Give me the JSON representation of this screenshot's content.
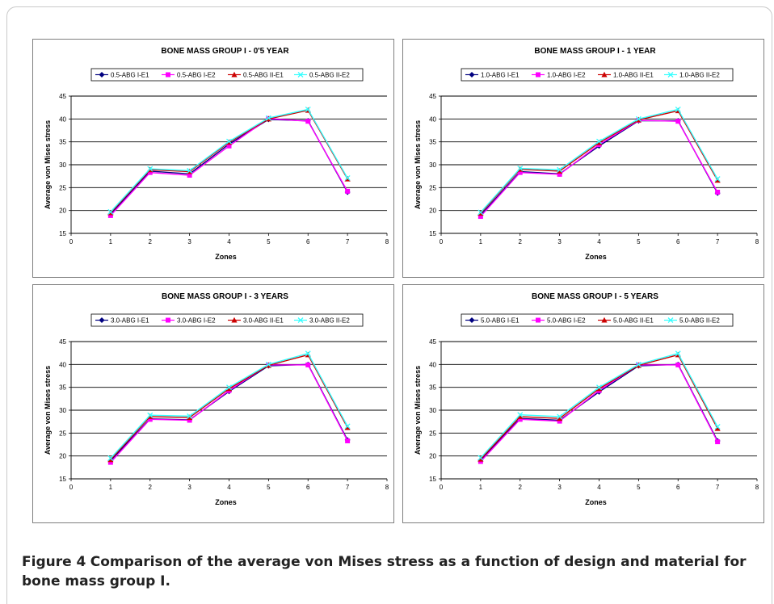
{
  "figure": {
    "caption_label": "Figure 4",
    "caption_text": "Comparison of the average von Mises stress as a function of design and material for bone mass group I."
  },
  "colors": {
    "series": [
      "#000080",
      "#ff00ff",
      "#cc0000",
      "#33ffff"
    ],
    "gridline": "#000000",
    "frame": "#c9c9c9"
  },
  "chart_data": [
    {
      "type": "line",
      "title": "BONE MASS GROUP I - 0'5 YEAR",
      "xlabel": "Zones",
      "ylabel": "Average von Mises stress",
      "xlim": [
        0,
        8
      ],
      "ylim": [
        15,
        45
      ],
      "xticks": [
        0,
        1,
        2,
        3,
        4,
        5,
        6,
        7,
        8
      ],
      "yticks": [
        15,
        20,
        25,
        30,
        35,
        40,
        45
      ],
      "grid": "horizontal",
      "legend": "top",
      "x": [
        1,
        2,
        3,
        4,
        5,
        6,
        7
      ],
      "series": [
        {
          "name": "0.5-ABG I-E1",
          "marker": "diamond",
          "values": [
            19.2,
            28.6,
            28.0,
            34.5,
            39.9,
            39.6,
            24.0
          ]
        },
        {
          "name": "0.5-ABG I-E2",
          "marker": "square",
          "values": [
            18.9,
            28.3,
            27.7,
            34.1,
            40.1,
            39.5,
            24.2
          ]
        },
        {
          "name": "0.5-ABG II-E1",
          "marker": "triangle",
          "values": [
            19.5,
            28.9,
            28.5,
            34.9,
            40.0,
            41.9,
            26.9
          ]
        },
        {
          "name": "0.5-ABG II-E2",
          "marker": "x",
          "values": [
            19.7,
            29.1,
            28.7,
            35.1,
            40.2,
            42.1,
            27.1
          ]
        }
      ]
    },
    {
      "type": "line",
      "title": "BONE MASS GROUP I - 1 YEAR",
      "xlabel": "Zones",
      "ylabel": "Average von Mises stress",
      "xlim": [
        0,
        8
      ],
      "ylim": [
        15,
        45
      ],
      "xticks": [
        0,
        1,
        2,
        3,
        4,
        5,
        6,
        7,
        8
      ],
      "yticks": [
        15,
        20,
        25,
        30,
        35,
        40,
        45
      ],
      "grid": "horizontal",
      "legend": "top",
      "x": [
        1,
        2,
        3,
        4,
        5,
        6,
        7
      ],
      "series": [
        {
          "name": "1.0-ABG I-E1",
          "marker": "diamond",
          "values": [
            19.0,
            28.5,
            28.0,
            34.1,
            39.6,
            39.6,
            23.8
          ]
        },
        {
          "name": "1.0-ABG I-E2",
          "marker": "square",
          "values": [
            18.7,
            28.3,
            27.9,
            34.4,
            39.7,
            39.5,
            24.0
          ]
        },
        {
          "name": "1.0-ABG II-E1",
          "marker": "triangle",
          "values": [
            19.4,
            29.0,
            28.6,
            34.8,
            39.8,
            41.8,
            26.6
          ]
        },
        {
          "name": "1.0-ABG II-E2",
          "marker": "x",
          "values": [
            19.6,
            29.2,
            28.9,
            35.1,
            40.0,
            42.1,
            26.9
          ]
        }
      ]
    },
    {
      "type": "line",
      "title": "BONE MASS GROUP I - 3 YEARS",
      "xlabel": "Zones",
      "ylabel": "Average von Mises stress",
      "xlim": [
        0,
        8
      ],
      "ylim": [
        15,
        45
      ],
      "xticks": [
        0,
        1,
        2,
        3,
        4,
        5,
        6,
        7,
        8
      ],
      "yticks": [
        15,
        20,
        25,
        30,
        35,
        40,
        45
      ],
      "grid": "horizontal",
      "legend": "top",
      "x": [
        1,
        2,
        3,
        4,
        5,
        6,
        7
      ],
      "series": [
        {
          "name": "3.0-ABG I-E1",
          "marker": "diamond",
          "values": [
            19.0,
            28.1,
            27.9,
            34.1,
            39.7,
            40.0,
            23.5
          ]
        },
        {
          "name": "3.0-ABG I-E2",
          "marker": "square",
          "values": [
            18.6,
            28.0,
            27.8,
            34.3,
            39.9,
            39.9,
            23.3
          ]
        },
        {
          "name": "3.0-ABG II-E1",
          "marker": "triangle",
          "values": [
            19.2,
            28.6,
            28.4,
            34.7,
            39.8,
            42.1,
            26.2
          ]
        },
        {
          "name": "3.0-ABG II-E2",
          "marker": "x",
          "values": [
            19.5,
            28.9,
            28.7,
            35.0,
            40.0,
            42.4,
            26.5
          ]
        }
      ]
    },
    {
      "type": "line",
      "title": "BONE MASS GROUP I - 5 YEARS",
      "xlabel": "Zones",
      "ylabel": "Average von Mises stress",
      "xlim": [
        0,
        8
      ],
      "ylim": [
        15,
        45
      ],
      "xticks": [
        0,
        1,
        2,
        3,
        4,
        5,
        6,
        7,
        8
      ],
      "yticks": [
        15,
        20,
        25,
        30,
        35,
        40,
        45
      ],
      "grid": "horizontal",
      "legend": "top",
      "x": [
        1,
        2,
        3,
        4,
        5,
        6,
        7
      ],
      "series": [
        {
          "name": "5.0-ABG I-E1",
          "marker": "diamond",
          "values": [
            19.1,
            28.2,
            27.8,
            34.0,
            39.7,
            40.0,
            23.3
          ]
        },
        {
          "name": "5.0-ABG I-E2",
          "marker": "square",
          "values": [
            18.8,
            28.0,
            27.6,
            34.3,
            39.9,
            39.9,
            23.1
          ]
        },
        {
          "name": "5.0-ABG II-E1",
          "marker": "triangle",
          "values": [
            19.3,
            28.6,
            28.2,
            34.7,
            39.8,
            42.1,
            26.0
          ]
        },
        {
          "name": "5.0-ABG II-E2",
          "marker": "x",
          "values": [
            19.6,
            29.0,
            28.6,
            35.0,
            40.0,
            42.4,
            26.4
          ]
        }
      ]
    }
  ]
}
